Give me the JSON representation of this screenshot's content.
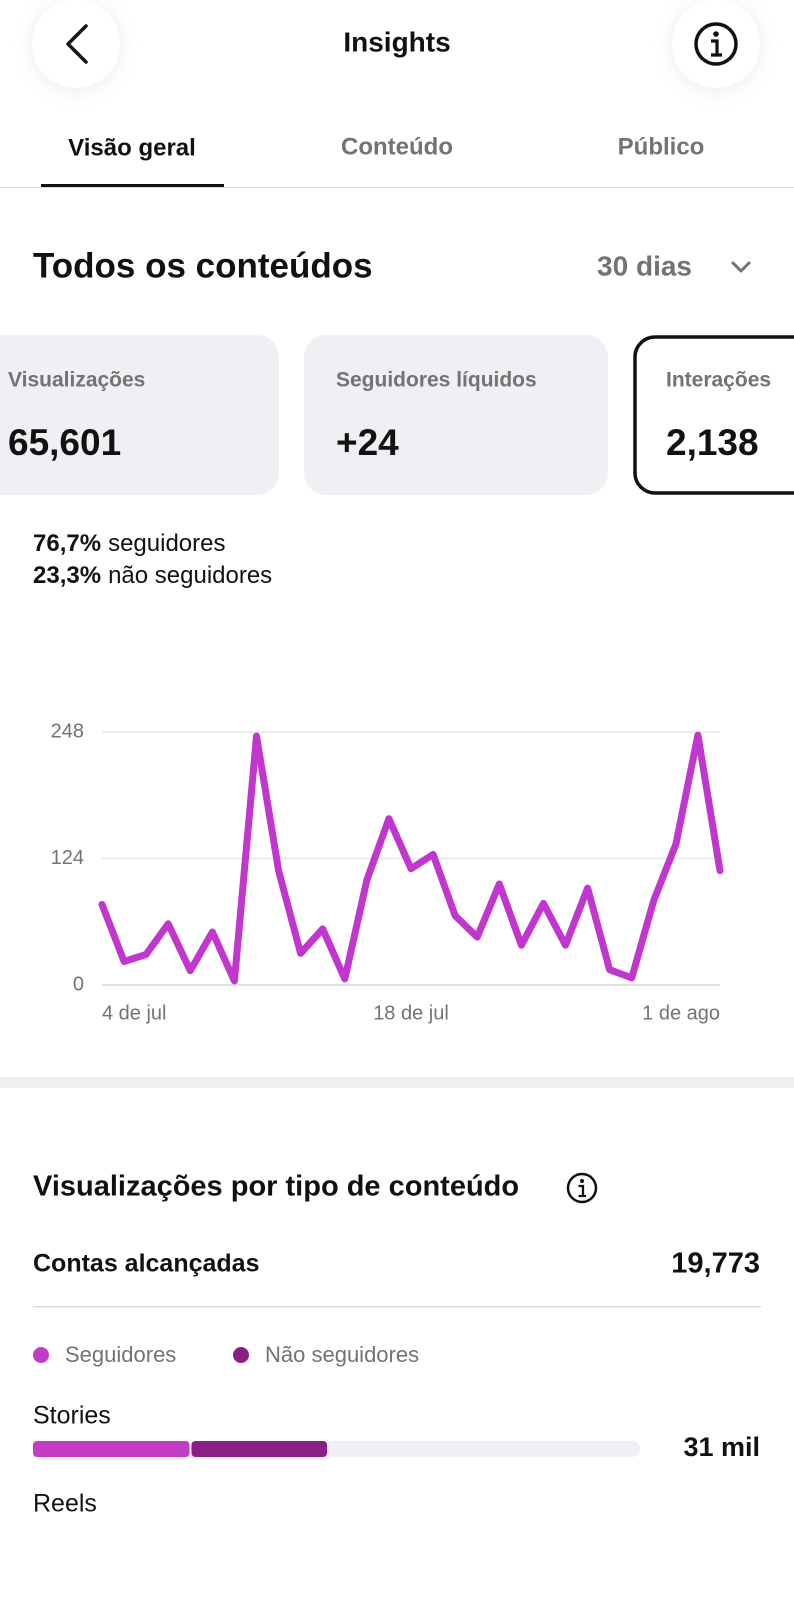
{
  "header": {
    "title": "Insights"
  },
  "tabs": [
    "Visão geral",
    "Conteúdo",
    "Público"
  ],
  "section": {
    "title": "Todos os conteúdos",
    "period": "30 dias"
  },
  "cards": [
    {
      "label": "Visualizações",
      "value": "65,601"
    },
    {
      "label": "Seguidores líquidos",
      "value": "+24"
    },
    {
      "label": "Interações",
      "value": "2,138"
    }
  ],
  "breakdown": [
    {
      "value": "76,7%",
      "label": "seguidores"
    },
    {
      "value": "23,3%",
      "label": "não seguidores"
    }
  ],
  "content_section": {
    "title": "Visualizações por tipo de conteúdo",
    "reach_label": "Contas alcançadas",
    "reach_value": "19,773"
  },
  "chart_data": [
    {
      "type": "line",
      "categories": [
        "4 de jul",
        null,
        null,
        null,
        null,
        null,
        null,
        null,
        null,
        null,
        null,
        null,
        null,
        null,
        "18 de jul",
        null,
        null,
        null,
        null,
        null,
        null,
        null,
        null,
        null,
        null,
        null,
        null,
        null,
        "1 de ago"
      ],
      "values": [
        79,
        23,
        30,
        60,
        14,
        52,
        4,
        244,
        112,
        31,
        55,
        6,
        103,
        163,
        114,
        128,
        68,
        47,
        99,
        39,
        80,
        39,
        95,
        15,
        7,
        83,
        138,
        245,
        112
      ],
      "color": "#c136cc",
      "ylim": [
        0,
        248
      ],
      "yticks": [
        0,
        124,
        248
      ],
      "grid": true
    },
    {
      "type": "stacked-bar",
      "categories": [
        "Stories",
        "Reels"
      ],
      "series": [
        {
          "name": "Seguidores",
          "color": "#c43cc6",
          "values": [
            16.5,
            null
          ]
        },
        {
          "name": "Não seguidores",
          "color": "#8a1f86",
          "values": [
            14.5,
            null
          ]
        }
      ],
      "totals": [
        31,
        null
      ],
      "total_labels": [
        "31 mil",
        null
      ],
      "xlim": [
        0,
        64
      ]
    }
  ]
}
